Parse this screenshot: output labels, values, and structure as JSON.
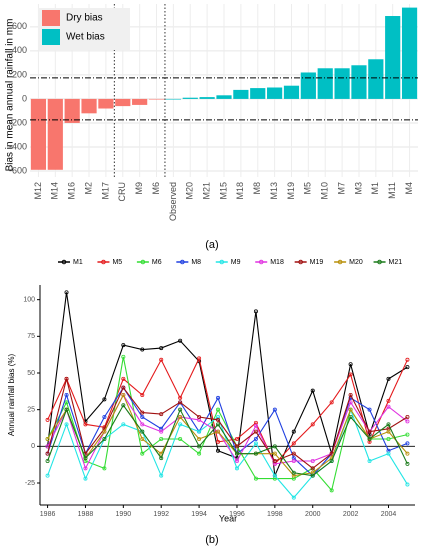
{
  "chart_data": [
    {
      "type": "bar",
      "y_label": "Bias in mean annual rainfall in mm",
      "caption": "(a)",
      "categories": [
        "M12",
        "M14",
        "M16",
        "M2",
        "M17",
        "CRU",
        "M9",
        "M6",
        "Observed",
        "M20",
        "M21",
        "M15",
        "M18",
        "M8",
        "M13",
        "M19",
        "M5",
        "M10",
        "M7",
        "M3",
        "M1",
        "M11",
        "M4"
      ],
      "series": [
        {
          "name": "Dry bias",
          "color": "#f8766d",
          "values": [
            -590,
            -590,
            -200,
            -120,
            -80,
            -60,
            -50,
            -5,
            null,
            null,
            null,
            null,
            null,
            null,
            null,
            null,
            null,
            null,
            null,
            null,
            null,
            null,
            null
          ]
        },
        {
          "name": "Wet bias",
          "color": "#00bfc4",
          "values": [
            null,
            null,
            null,
            null,
            null,
            null,
            null,
            null,
            0,
            10,
            15,
            30,
            75,
            90,
            95,
            110,
            220,
            255,
            255,
            280,
            330,
            690,
            760
          ]
        }
      ],
      "hlines": [
        175,
        -175
      ],
      "ylim": [
        -650,
        790
      ],
      "yticks": [
        -600,
        -400,
        -200,
        0,
        200,
        400,
        600
      ],
      "grid": true,
      "legend": "top-left"
    },
    {
      "type": "line",
      "x_label": "Year",
      "y_label": "Annual rainfall bias (%)",
      "caption": "(b)",
      "x": [
        1986,
        1987,
        1988,
        1989,
        1990,
        1991,
        1992,
        1993,
        1994,
        1995,
        1996,
        1997,
        1998,
        1999,
        2000,
        2001,
        2002,
        2003,
        2004,
        2005
      ],
      "series": [
        {
          "name": "M1",
          "color": "#000000",
          "values": [
            0,
            105,
            17,
            32,
            69,
            66,
            67,
            72,
            58,
            -3,
            -8,
            92,
            -20,
            10,
            38,
            -5,
            56,
            8,
            46,
            54
          ]
        },
        {
          "name": "M5",
          "color": "#e41a1c",
          "values": [
            18,
            46,
            15,
            13,
            46,
            35,
            59,
            33,
            60,
            3,
            5,
            16,
            -12,
            2,
            15,
            30,
            49,
            3,
            31,
            59
          ]
        },
        {
          "name": "M6",
          "color": "#33dd33",
          "values": [
            5,
            30,
            -10,
            -15,
            61,
            -5,
            5,
            5,
            -5,
            25,
            0,
            -22,
            -22,
            -22,
            -15,
            -30,
            25,
            5,
            5,
            8
          ]
        },
        {
          "name": "M8",
          "color": "#1f3fe0",
          "values": [
            -5,
            35,
            -5,
            20,
            40,
            20,
            12,
            30,
            10,
            33,
            -5,
            5,
            25,
            -8,
            -20,
            -5,
            33,
            25,
            -3,
            2
          ]
        },
        {
          "name": "M9",
          "color": "#22e5e5",
          "values": [
            -20,
            15,
            -22,
            5,
            15,
            10,
            -20,
            15,
            10,
            20,
            -15,
            2,
            -20,
            -35,
            -20,
            -10,
            25,
            -10,
            -5,
            -26
          ]
        },
        {
          "name": "M18",
          "color": "#e033e0",
          "values": [
            0,
            25,
            -15,
            10,
            35,
            15,
            10,
            20,
            18,
            10,
            -10,
            14,
            -12,
            -10,
            -10,
            -5,
            30,
            10,
            27,
            17
          ]
        },
        {
          "name": "M19",
          "color": "#a01010",
          "values": [
            -5,
            46,
            -5,
            12,
            40,
            23,
            22,
            30,
            20,
            18,
            0,
            10,
            -10,
            -5,
            -15,
            -5,
            35,
            10,
            12,
            20
          ]
        },
        {
          "name": "M20",
          "color": "#b8900b",
          "values": [
            5,
            25,
            -8,
            10,
            35,
            5,
            -5,
            20,
            5,
            10,
            -5,
            -5,
            -5,
            -20,
            -18,
            -8,
            25,
            5,
            10,
            -5
          ]
        },
        {
          "name": "M21",
          "color": "#1a7a1a",
          "values": [
            -10,
            25,
            -8,
            5,
            28,
            10,
            -8,
            25,
            0,
            15,
            -5,
            -5,
            0,
            -18,
            -20,
            -10,
            20,
            5,
            15,
            -12
          ]
        }
      ],
      "xlim": [
        1985.6,
        2005.4
      ],
      "xticks": [
        1986,
        1988,
        1990,
        1992,
        1994,
        1996,
        1998,
        2000,
        2002,
        2004
      ],
      "ylim": [
        -40,
        110
      ],
      "yticks": [
        -25,
        0,
        25,
        50,
        75,
        100
      ],
      "grid": false,
      "legend": "top"
    }
  ]
}
